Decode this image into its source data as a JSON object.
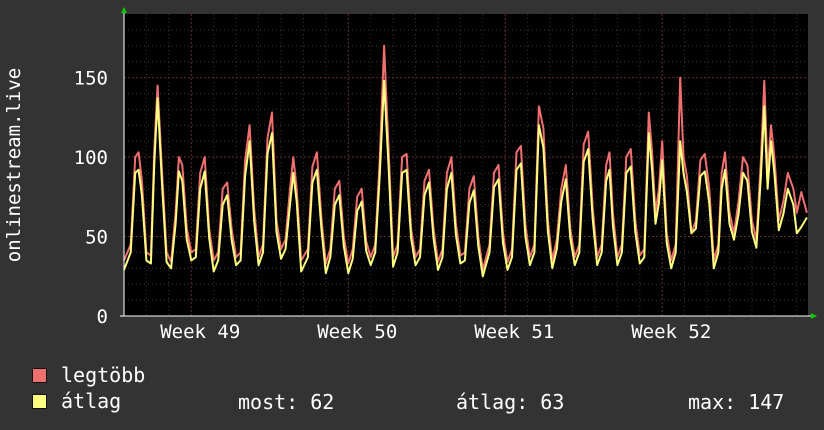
{
  "chart_data": {
    "type": "line",
    "ylabel": "onlinestream.live",
    "yticks": [
      0,
      50,
      100,
      150
    ],
    "ylim": [
      0,
      190
    ],
    "xticks": [
      "Week 49",
      "Week 50",
      "Week 51",
      "Week 52"
    ],
    "xtick_positions": [
      6,
      13,
      20,
      27
    ],
    "xlim": [
      3,
      33.5
    ],
    "grid": true,
    "series": [
      {
        "name": "legtöbb",
        "color": "#f07070",
        "points": [
          [
            3.0,
            35
          ],
          [
            3.3,
            45
          ],
          [
            3.5,
            100
          ],
          [
            3.65,
            103
          ],
          [
            3.8,
            85
          ],
          [
            4.0,
            40
          ],
          [
            4.2,
            38
          ],
          [
            4.35,
            105
          ],
          [
            4.5,
            145
          ],
          [
            4.7,
            90
          ],
          [
            4.9,
            40
          ],
          [
            5.1,
            34
          ],
          [
            5.3,
            65
          ],
          [
            5.45,
            100
          ],
          [
            5.6,
            95
          ],
          [
            5.8,
            55
          ],
          [
            6.0,
            40
          ],
          [
            6.2,
            42
          ],
          [
            6.4,
            90
          ],
          [
            6.6,
            100
          ],
          [
            6.8,
            55
          ],
          [
            7.0,
            35
          ],
          [
            7.2,
            40
          ],
          [
            7.4,
            80
          ],
          [
            7.6,
            84
          ],
          [
            7.8,
            55
          ],
          [
            8.0,
            37
          ],
          [
            8.2,
            40
          ],
          [
            8.4,
            98
          ],
          [
            8.6,
            120
          ],
          [
            8.8,
            68
          ],
          [
            9.0,
            37
          ],
          [
            9.2,
            45
          ],
          [
            9.4,
            112
          ],
          [
            9.6,
            128
          ],
          [
            9.8,
            60
          ],
          [
            10.0,
            42
          ],
          [
            10.2,
            48
          ],
          [
            10.4,
            80
          ],
          [
            10.55,
            100
          ],
          [
            10.7,
            80
          ],
          [
            10.9,
            35
          ],
          [
            11.2,
            42
          ],
          [
            11.4,
            94
          ],
          [
            11.6,
            103
          ],
          [
            11.8,
            62
          ],
          [
            12.0,
            33
          ],
          [
            12.2,
            42
          ],
          [
            12.4,
            80
          ],
          [
            12.6,
            85
          ],
          [
            12.8,
            50
          ],
          [
            13.0,
            33
          ],
          [
            13.2,
            42
          ],
          [
            13.4,
            75
          ],
          [
            13.6,
            80
          ],
          [
            13.8,
            47
          ],
          [
            14.0,
            37
          ],
          [
            14.2,
            45
          ],
          [
            14.4,
            98
          ],
          [
            14.6,
            170
          ],
          [
            14.8,
            105
          ],
          [
            15.0,
            37
          ],
          [
            15.2,
            45
          ],
          [
            15.4,
            100
          ],
          [
            15.6,
            102
          ],
          [
            15.8,
            55
          ],
          [
            16.0,
            37
          ],
          [
            16.2,
            42
          ],
          [
            16.4,
            85
          ],
          [
            16.6,
            92
          ],
          [
            16.8,
            55
          ],
          [
            17.0,
            34
          ],
          [
            17.2,
            42
          ],
          [
            17.4,
            90
          ],
          [
            17.6,
            100
          ],
          [
            17.8,
            58
          ],
          [
            18.0,
            38
          ],
          [
            18.2,
            40
          ],
          [
            18.4,
            80
          ],
          [
            18.6,
            88
          ],
          [
            18.8,
            50
          ],
          [
            19.0,
            29
          ],
          [
            19.3,
            45
          ],
          [
            19.5,
            90
          ],
          [
            19.7,
            95
          ],
          [
            19.9,
            52
          ],
          [
            20.1,
            34
          ],
          [
            20.3,
            42
          ],
          [
            20.5,
            103
          ],
          [
            20.7,
            107
          ],
          [
            20.9,
            57
          ],
          [
            21.1,
            37
          ],
          [
            21.3,
            45
          ],
          [
            21.5,
            132
          ],
          [
            21.7,
            118
          ],
          [
            21.9,
            60
          ],
          [
            22.1,
            35
          ],
          [
            22.3,
            48
          ],
          [
            22.5,
            80
          ],
          [
            22.7,
            95
          ],
          [
            22.9,
            55
          ],
          [
            23.1,
            37
          ],
          [
            23.3,
            45
          ],
          [
            23.5,
            108
          ],
          [
            23.7,
            116
          ],
          [
            23.9,
            68
          ],
          [
            24.1,
            37
          ],
          [
            24.3,
            45
          ],
          [
            24.5,
            95
          ],
          [
            24.65,
            103
          ],
          [
            24.8,
            65
          ],
          [
            25.0,
            37
          ],
          [
            25.2,
            45
          ],
          [
            25.4,
            100
          ],
          [
            25.6,
            105
          ],
          [
            25.8,
            60
          ],
          [
            26.0,
            38
          ],
          [
            26.2,
            42
          ],
          [
            26.4,
            128
          ],
          [
            26.55,
            103
          ],
          [
            26.7,
            65
          ],
          [
            26.85,
            80
          ],
          [
            27.0,
            110
          ],
          [
            27.2,
            52
          ],
          [
            27.4,
            35
          ],
          [
            27.6,
            45
          ],
          [
            27.8,
            150
          ],
          [
            27.95,
            100
          ],
          [
            28.1,
            88
          ],
          [
            28.3,
            52
          ],
          [
            28.5,
            60
          ],
          [
            28.7,
            98
          ],
          [
            28.9,
            102
          ],
          [
            29.1,
            80
          ],
          [
            29.3,
            35
          ],
          [
            29.5,
            45
          ],
          [
            29.65,
            90
          ],
          [
            29.8,
            103
          ],
          [
            30.0,
            65
          ],
          [
            30.2,
            52
          ],
          [
            30.4,
            72
          ],
          [
            30.6,
            100
          ],
          [
            30.8,
            95
          ],
          [
            31.0,
            60
          ],
          [
            31.2,
            48
          ],
          [
            31.4,
            98
          ],
          [
            31.55,
            148
          ],
          [
            31.7,
            90
          ],
          [
            31.85,
            120
          ],
          [
            32.0,
            100
          ],
          [
            32.2,
            60
          ],
          [
            32.4,
            72
          ],
          [
            32.6,
            90
          ],
          [
            32.85,
            80
          ],
          [
            33.0,
            65
          ],
          [
            33.2,
            78
          ],
          [
            33.45,
            65
          ]
        ]
      },
      {
        "name": "átlag",
        "color": "#ffff80",
        "points": [
          [
            3.0,
            29
          ],
          [
            3.3,
            40
          ],
          [
            3.5,
            90
          ],
          [
            3.65,
            92
          ],
          [
            3.8,
            76
          ],
          [
            4.0,
            35
          ],
          [
            4.2,
            33
          ],
          [
            4.35,
            96
          ],
          [
            4.5,
            137
          ],
          [
            4.7,
            82
          ],
          [
            4.9,
            34
          ],
          [
            5.1,
            30
          ],
          [
            5.3,
            58
          ],
          [
            5.45,
            91
          ],
          [
            5.6,
            85
          ],
          [
            5.8,
            48
          ],
          [
            6.0,
            35
          ],
          [
            6.2,
            37
          ],
          [
            6.4,
            80
          ],
          [
            6.6,
            91
          ],
          [
            6.8,
            49
          ],
          [
            7.0,
            28
          ],
          [
            7.2,
            35
          ],
          [
            7.4,
            70
          ],
          [
            7.6,
            76
          ],
          [
            7.8,
            48
          ],
          [
            8.0,
            32
          ],
          [
            8.2,
            35
          ],
          [
            8.4,
            88
          ],
          [
            8.6,
            110
          ],
          [
            8.8,
            60
          ],
          [
            9.0,
            32
          ],
          [
            9.2,
            40
          ],
          [
            9.4,
            102
          ],
          [
            9.6,
            115
          ],
          [
            9.8,
            53
          ],
          [
            10.0,
            36
          ],
          [
            10.2,
            42
          ],
          [
            10.4,
            70
          ],
          [
            10.55,
            90
          ],
          [
            10.7,
            72
          ],
          [
            10.9,
            28
          ],
          [
            11.2,
            37
          ],
          [
            11.4,
            84
          ],
          [
            11.6,
            92
          ],
          [
            11.8,
            55
          ],
          [
            12.0,
            27
          ],
          [
            12.2,
            37
          ],
          [
            12.4,
            70
          ],
          [
            12.6,
            76
          ],
          [
            12.8,
            44
          ],
          [
            13.0,
            27
          ],
          [
            13.2,
            36
          ],
          [
            13.4,
            66
          ],
          [
            13.6,
            72
          ],
          [
            13.8,
            41
          ],
          [
            14.0,
            32
          ],
          [
            14.2,
            40
          ],
          [
            14.4,
            88
          ],
          [
            14.6,
            148
          ],
          [
            14.8,
            94
          ],
          [
            15.0,
            31
          ],
          [
            15.2,
            40
          ],
          [
            15.4,
            90
          ],
          [
            15.6,
            92
          ],
          [
            15.8,
            49
          ],
          [
            16.0,
            32
          ],
          [
            16.2,
            37
          ],
          [
            16.4,
            76
          ],
          [
            16.6,
            84
          ],
          [
            16.8,
            49
          ],
          [
            17.0,
            29
          ],
          [
            17.2,
            37
          ],
          [
            17.4,
            80
          ],
          [
            17.6,
            90
          ],
          [
            17.8,
            51
          ],
          [
            18.0,
            33
          ],
          [
            18.2,
            35
          ],
          [
            18.4,
            71
          ],
          [
            18.6,
            79
          ],
          [
            18.8,
            44
          ],
          [
            19.0,
            25
          ],
          [
            19.3,
            40
          ],
          [
            19.5,
            81
          ],
          [
            19.7,
            86
          ],
          [
            19.9,
            46
          ],
          [
            20.1,
            29
          ],
          [
            20.3,
            37
          ],
          [
            20.5,
            92
          ],
          [
            20.7,
            96
          ],
          [
            20.9,
            50
          ],
          [
            21.1,
            32
          ],
          [
            21.3,
            40
          ],
          [
            21.5,
            120
          ],
          [
            21.7,
            106
          ],
          [
            21.9,
            53
          ],
          [
            22.1,
            30
          ],
          [
            22.3,
            42
          ],
          [
            22.5,
            72
          ],
          [
            22.7,
            86
          ],
          [
            22.9,
            49
          ],
          [
            23.1,
            32
          ],
          [
            23.3,
            40
          ],
          [
            23.5,
            97
          ],
          [
            23.7,
            105
          ],
          [
            23.9,
            61
          ],
          [
            24.1,
            32
          ],
          [
            24.3,
            40
          ],
          [
            24.5,
            85
          ],
          [
            24.65,
            92
          ],
          [
            24.8,
            57
          ],
          [
            25.0,
            32
          ],
          [
            25.2,
            40
          ],
          [
            25.4,
            90
          ],
          [
            25.6,
            94
          ],
          [
            25.8,
            53
          ],
          [
            26.0,
            33
          ],
          [
            26.2,
            37
          ],
          [
            26.4,
            115
          ],
          [
            26.55,
            92
          ],
          [
            26.7,
            58
          ],
          [
            26.85,
            71
          ],
          [
            27.0,
            98
          ],
          [
            27.2,
            46
          ],
          [
            27.4,
            30
          ],
          [
            27.6,
            40
          ],
          [
            27.8,
            110
          ],
          [
            27.95,
            90
          ],
          [
            28.1,
            78
          ],
          [
            28.3,
            52
          ],
          [
            28.5,
            55
          ],
          [
            28.7,
            88
          ],
          [
            28.9,
            91
          ],
          [
            29.1,
            71
          ],
          [
            29.3,
            30
          ],
          [
            29.5,
            40
          ],
          [
            29.65,
            80
          ],
          [
            29.8,
            92
          ],
          [
            30.0,
            58
          ],
          [
            30.2,
            48
          ],
          [
            30.4,
            64
          ],
          [
            30.6,
            90
          ],
          [
            30.8,
            85
          ],
          [
            31.0,
            53
          ],
          [
            31.2,
            43
          ],
          [
            31.4,
            88
          ],
          [
            31.55,
            132
          ],
          [
            31.7,
            80
          ],
          [
            31.85,
            110
          ],
          [
            32.0,
            90
          ],
          [
            32.2,
            54
          ],
          [
            32.4,
            64
          ],
          [
            32.6,
            80
          ],
          [
            32.85,
            70
          ],
          [
            33.0,
            52
          ],
          [
            33.2,
            56
          ],
          [
            33.45,
            62
          ]
        ]
      }
    ]
  },
  "legend": {
    "max_label": "legtöbb",
    "avg_label": "átlag"
  },
  "stats": {
    "now": "most: 62",
    "avg": "átlag: 63",
    "max": "max: 147"
  }
}
